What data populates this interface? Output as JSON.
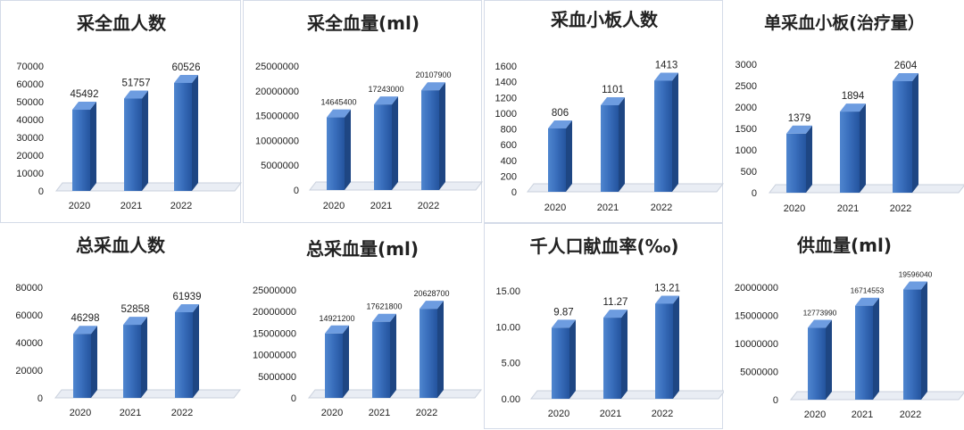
{
  "chart_data": [
    {
      "type": "bar",
      "title": "采全血人数",
      "categories": [
        "2020",
        "2021",
        "2022"
      ],
      "values": [
        45492,
        51757,
        60526
      ],
      "value_labels": [
        "45492",
        "51757",
        "60526"
      ],
      "yticks": [
        "0",
        "10000",
        "20000",
        "30000",
        "40000",
        "50000",
        "60000",
        "70000"
      ],
      "ylim": [
        0,
        70000
      ],
      "grid": false,
      "legend": "none"
    },
    {
      "type": "bar",
      "title": "采全血量(ml)",
      "categories": [
        "2020",
        "2021",
        "2022"
      ],
      "values": [
        14645400,
        17243000,
        20107900
      ],
      "value_labels": [
        "14645400",
        "17243000",
        "20107900"
      ],
      "yticks": [
        "0",
        "5000000",
        "10000000",
        "15000000",
        "20000000",
        "25000000"
      ],
      "ylim": [
        0,
        25000000
      ],
      "grid": false,
      "legend": "none"
    },
    {
      "type": "bar",
      "title": "采血小板人数",
      "categories": [
        "2020",
        "2021",
        "2022"
      ],
      "values": [
        806,
        1101,
        1413
      ],
      "value_labels": [
        "806",
        "1101",
        "1413"
      ],
      "yticks": [
        "0",
        "200",
        "400",
        "600",
        "800",
        "1000",
        "1200",
        "1400",
        "1600"
      ],
      "ylim": [
        0,
        1600
      ],
      "grid": false,
      "legend": "none"
    },
    {
      "type": "bar",
      "title": "单采血小板(治疗量）",
      "categories": [
        "2020",
        "2021",
        "2022"
      ],
      "values": [
        1379,
        1894,
        2604
      ],
      "value_labels": [
        "1379",
        "1894",
        "2604"
      ],
      "yticks": [
        "0",
        "500",
        "1000",
        "1500",
        "2000",
        "2500",
        "3000"
      ],
      "ylim": [
        0,
        3000
      ],
      "grid": false,
      "legend": "none"
    },
    {
      "type": "bar",
      "title": "总采血人数",
      "categories": [
        "2020",
        "2021",
        "2022"
      ],
      "values": [
        46298,
        52858,
        61939
      ],
      "value_labels": [
        "46298",
        "52858",
        "61939"
      ],
      "yticks": [
        "0",
        "20000",
        "40000",
        "60000",
        "80000"
      ],
      "ylim": [
        0,
        80000
      ],
      "grid": false,
      "legend": "none"
    },
    {
      "type": "bar",
      "title": "总采血量(ml)",
      "categories": [
        "2020",
        "2021",
        "2022"
      ],
      "values": [
        14921200,
        17621800,
        20628700
      ],
      "value_labels": [
        "14921200",
        "17621800",
        "20628700"
      ],
      "yticks": [
        "0",
        "5000000",
        "10000000",
        "15000000",
        "20000000",
        "25000000"
      ],
      "ylim": [
        0,
        25000000
      ],
      "grid": false,
      "legend": "none"
    },
    {
      "type": "bar",
      "title": "千人口献血率(‰)",
      "categories": [
        "2020",
        "2021",
        "2022"
      ],
      "values": [
        9.87,
        11.27,
        13.21
      ],
      "value_labels": [
        "9.87",
        "11.27",
        "13.21"
      ],
      "yticks": [
        "0.00",
        "5.00",
        "10.00",
        "15.00"
      ],
      "ylim": [
        0,
        15
      ],
      "grid": false,
      "legend": "none"
    },
    {
      "type": "bar",
      "title": "供血量(ml)",
      "categories": [
        "2020",
        "2021",
        "2022"
      ],
      "values": [
        12773990,
        16714553,
        19596040
      ],
      "value_labels": [
        "12773990",
        "16714553",
        "19596040"
      ],
      "yticks": [
        "0",
        "5000000",
        "10000000",
        "15000000",
        "20000000"
      ],
      "ylim": [
        0,
        20000000
      ],
      "grid": false,
      "legend": "none"
    }
  ]
}
